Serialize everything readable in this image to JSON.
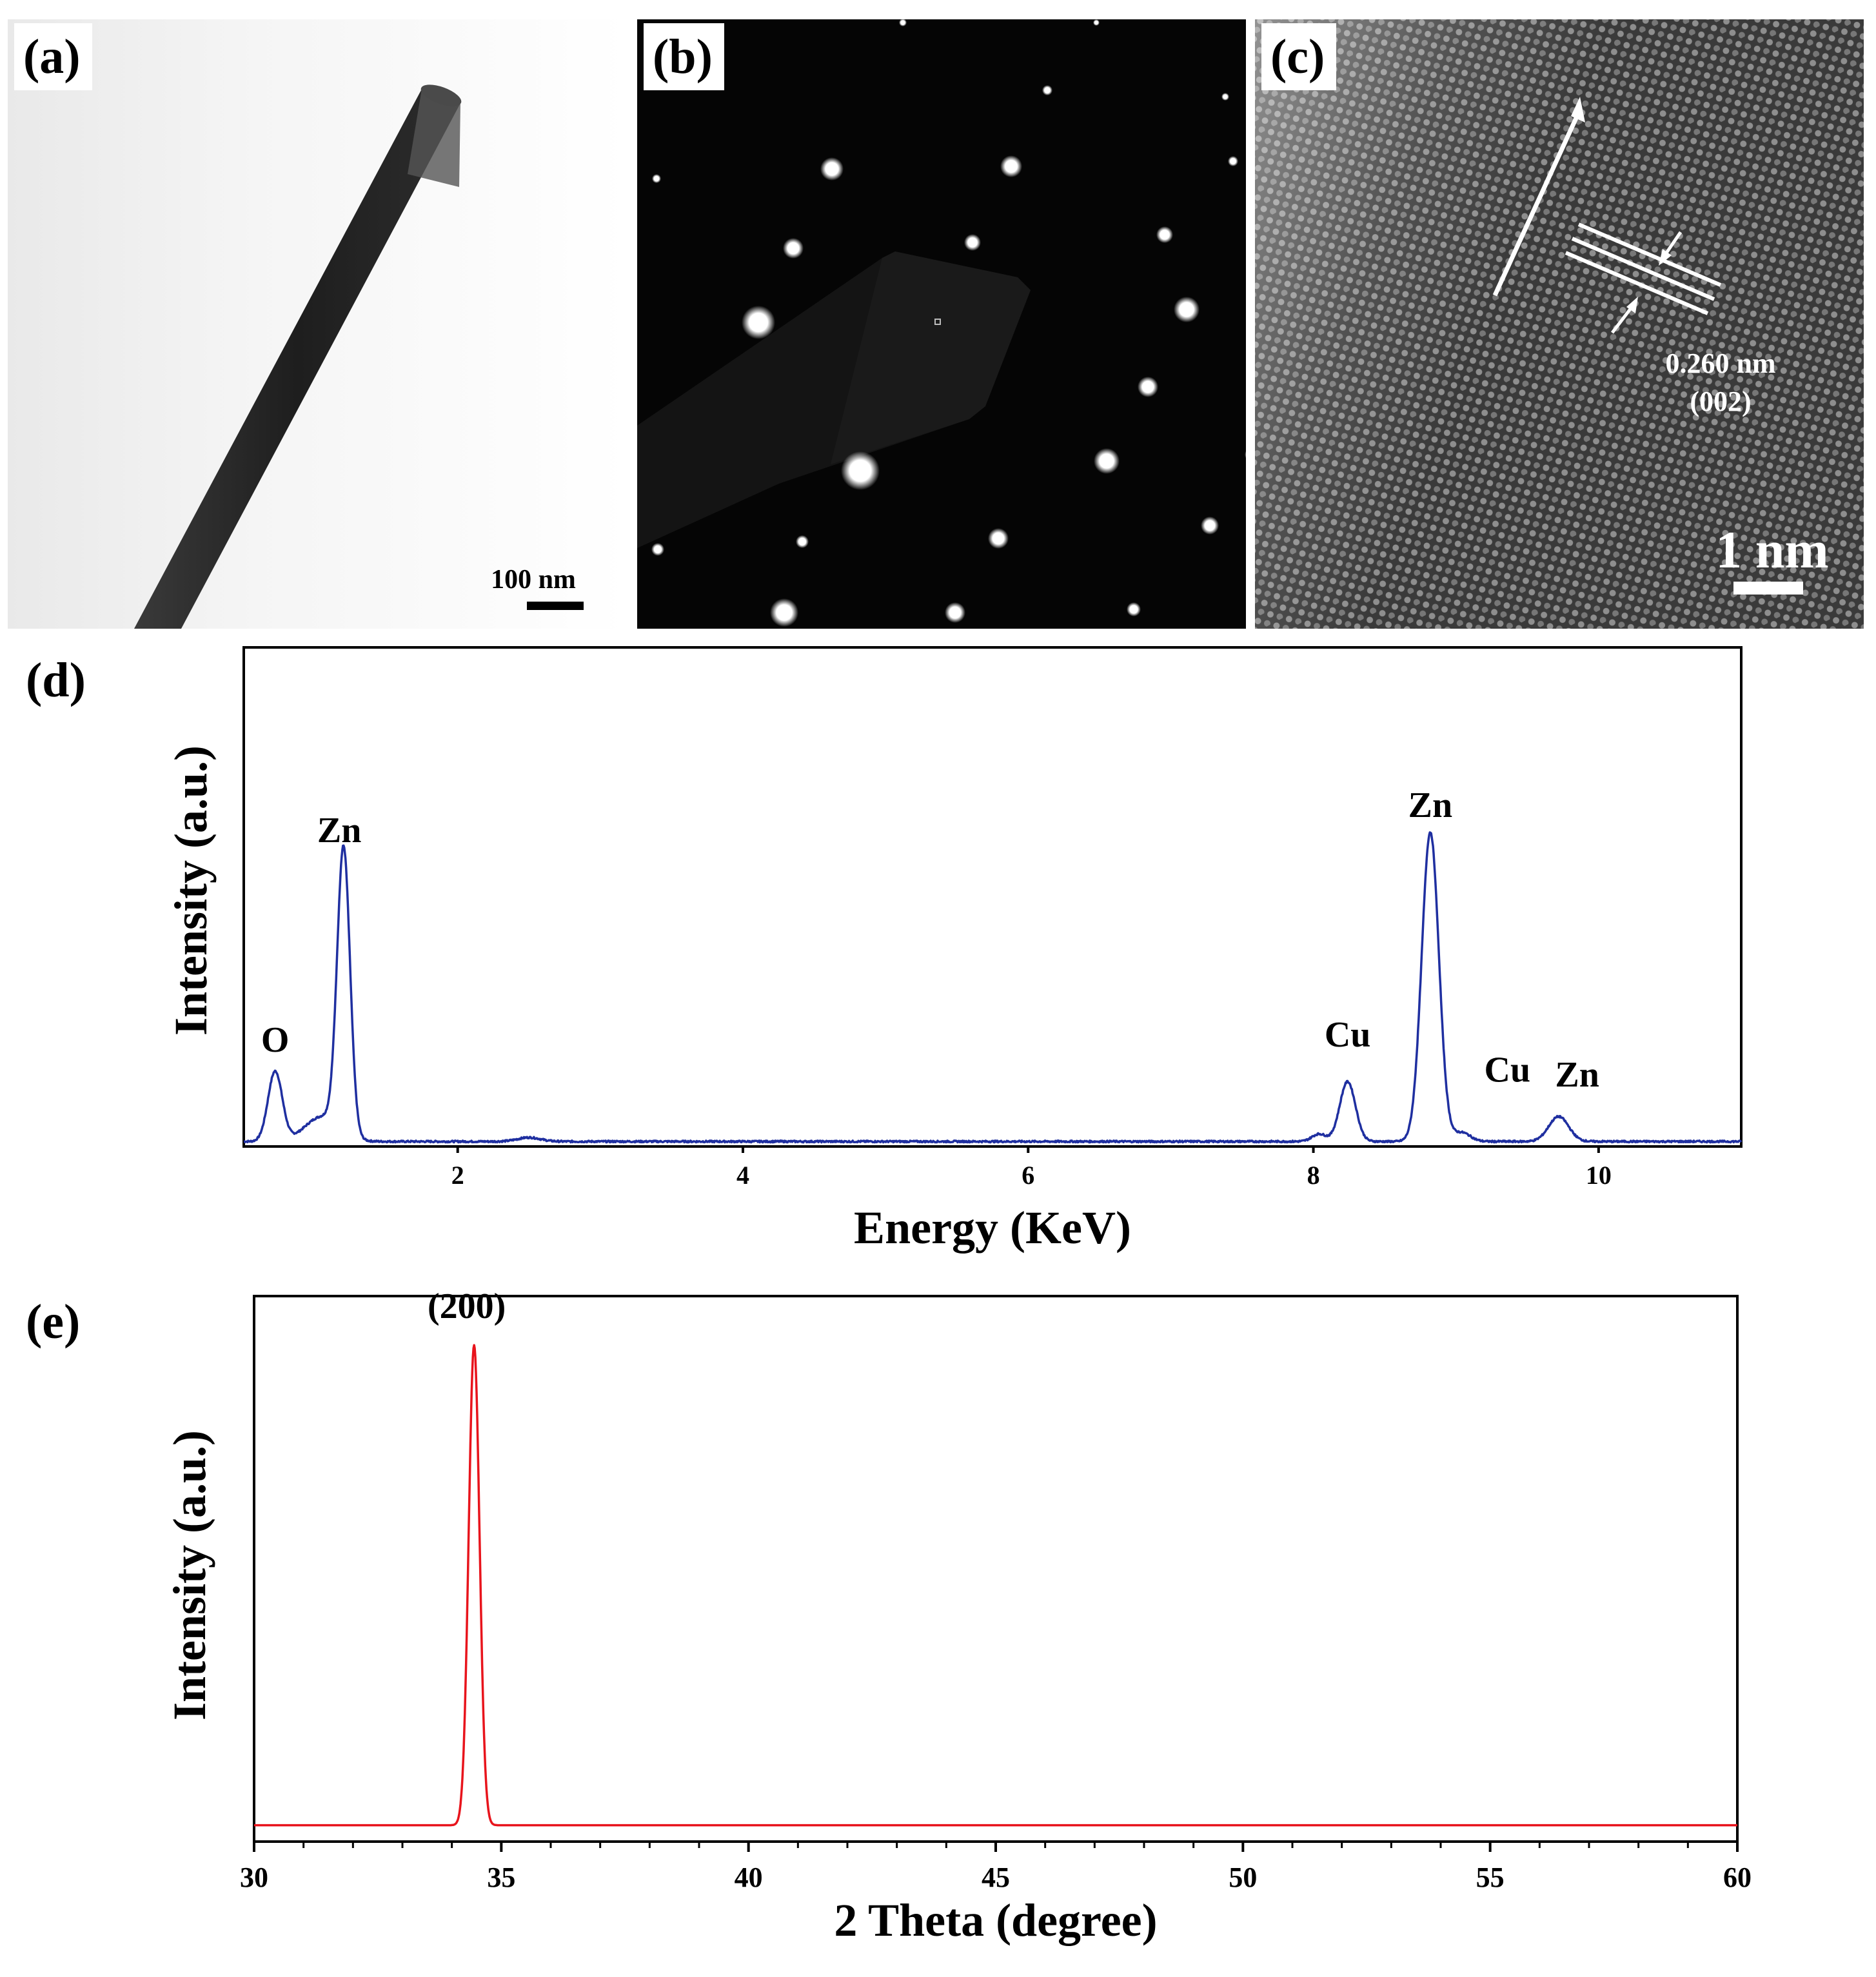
{
  "panels": {
    "a": {
      "label": "(a)",
      "scale_bar": "100 nm"
    },
    "b": {
      "label": "(b)"
    },
    "c": {
      "label": "(c)",
      "spacing": "0.260 nm",
      "plane": "(002)",
      "scale_bar": "1 nm"
    }
  },
  "colors": {
    "eds_line": "#1f2fa0",
    "xrd_line": "#e8141c",
    "axis": "#000000"
  },
  "chart_data": [
    {
      "panel": "(d)",
      "type": "line",
      "xlabel": "Energy (KeV)",
      "ylabel": "Intensity (a.u.)",
      "xlim": [
        0.5,
        11
      ],
      "ylim": [
        0,
        100
      ],
      "xticks": [
        2,
        4,
        6,
        8,
        10
      ],
      "baseline": 1,
      "peaks": [
        {
          "x": 0.72,
          "height": 14,
          "width": 0.05
        },
        {
          "x": 1.05,
          "height": 5,
          "width": 0.12
        },
        {
          "x": 1.2,
          "height": 57,
          "width": 0.045
        },
        {
          "x": 2.5,
          "height": 0.8,
          "width": 0.08
        },
        {
          "x": 8.04,
          "height": 1.5,
          "width": 0.05
        },
        {
          "x": 8.24,
          "height": 12,
          "width": 0.055
        },
        {
          "x": 8.82,
          "height": 62,
          "width": 0.06
        },
        {
          "x": 9.04,
          "height": 1.8,
          "width": 0.06
        },
        {
          "x": 9.72,
          "height": 5,
          "width": 0.07
        }
      ],
      "annotations": [
        {
          "text": "O",
          "x": 0.72,
          "y": 19
        },
        {
          "text": "Zn",
          "x": 1.17,
          "y": 61
        },
        {
          "text": "Cu",
          "x": 8.24,
          "y": 20
        },
        {
          "text": "Zn",
          "x": 8.82,
          "y": 66
        },
        {
          "text": "Cu",
          "x": 9.36,
          "y": 13
        },
        {
          "text": "Zn",
          "x": 9.85,
          "y": 12
        }
      ]
    },
    {
      "panel": "(e)",
      "type": "line",
      "xlabel": "2 Theta (degree)",
      "ylabel": "Intensity (a.u.)",
      "xlim": [
        30,
        60
      ],
      "ylim": [
        0,
        100
      ],
      "xticks": [
        30,
        35,
        40,
        45,
        50,
        55,
        60
      ],
      "baseline": 3,
      "peaks": [
        {
          "x": 34.45,
          "height": 88,
          "width": 0.11
        }
      ],
      "annotations": [
        {
          "text": "(200)",
          "x": 34.3,
          "y": 96
        }
      ]
    }
  ]
}
